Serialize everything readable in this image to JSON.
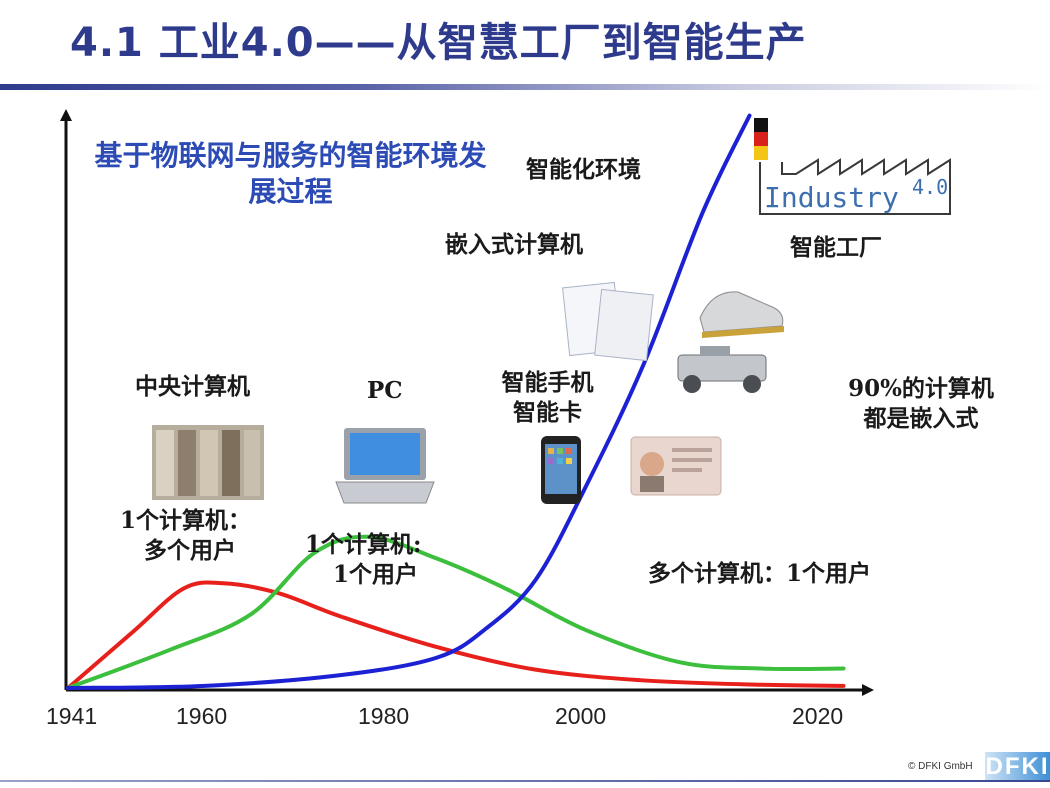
{
  "slide": {
    "title": "4.1 工业4.0——从智慧工厂到智能生产",
    "subtitle": "基于物联网与服务的智能环境发展过程"
  },
  "labels": {
    "smart_environment": "智能化环境",
    "embedded_computer": "嵌入式计算机",
    "smart_factory": "智能工厂",
    "mainframe": "中央计算机",
    "pc": "PC",
    "smartphone_line1": "智能手机",
    "smartphone_line2": "智能卡",
    "embedded_line1": "90%的计算机",
    "embedded_line2": "都是嵌入式",
    "one_many_line1": "1个计算机：",
    "one_many_line2": "多个用户",
    "one_one_line1": "1个计算机:",
    "one_one_line2": "1个用户",
    "many_one": "多个计算机：1个用户"
  },
  "logo": {
    "industry_text": "Industry",
    "industry_version": "4.0",
    "copyright": "© DFKI GmbH",
    "dfki": "DFKI"
  },
  "chart_data": {
    "type": "line",
    "x_ticks": [
      "1941",
      "1960",
      "1980",
      "2000",
      "2020"
    ],
    "series": [
      {
        "color": "#e8201c",
        "x": [
          1941,
          1950,
          1957,
          1962,
          1968,
          1975,
          1985,
          1995,
          2005,
          2015,
          2022
        ],
        "y": [
          0,
          0.52,
          0.92,
          0.97,
          0.88,
          0.66,
          0.38,
          0.17,
          0.07,
          0.03,
          0.02
        ]
      },
      {
        "color": "#3cbf3c",
        "x": [
          1941,
          1955,
          1965,
          1972,
          1978,
          1985,
          1992,
          2000,
          2008,
          2015,
          2022
        ],
        "y": [
          0,
          0.35,
          0.68,
          1.25,
          1.4,
          1.2,
          0.92,
          0.54,
          0.24,
          0.18,
          0.18
        ]
      },
      {
        "color": "#1c22d4",
        "x": [
          1941,
          1960,
          1975,
          1985,
          1990,
          1995,
          2000,
          2005,
          2010,
          2014
        ],
        "y": [
          0,
          0.02,
          0.12,
          0.28,
          0.55,
          1.0,
          1.85,
          3.0,
          4.4,
          5.3
        ]
      }
    ]
  }
}
